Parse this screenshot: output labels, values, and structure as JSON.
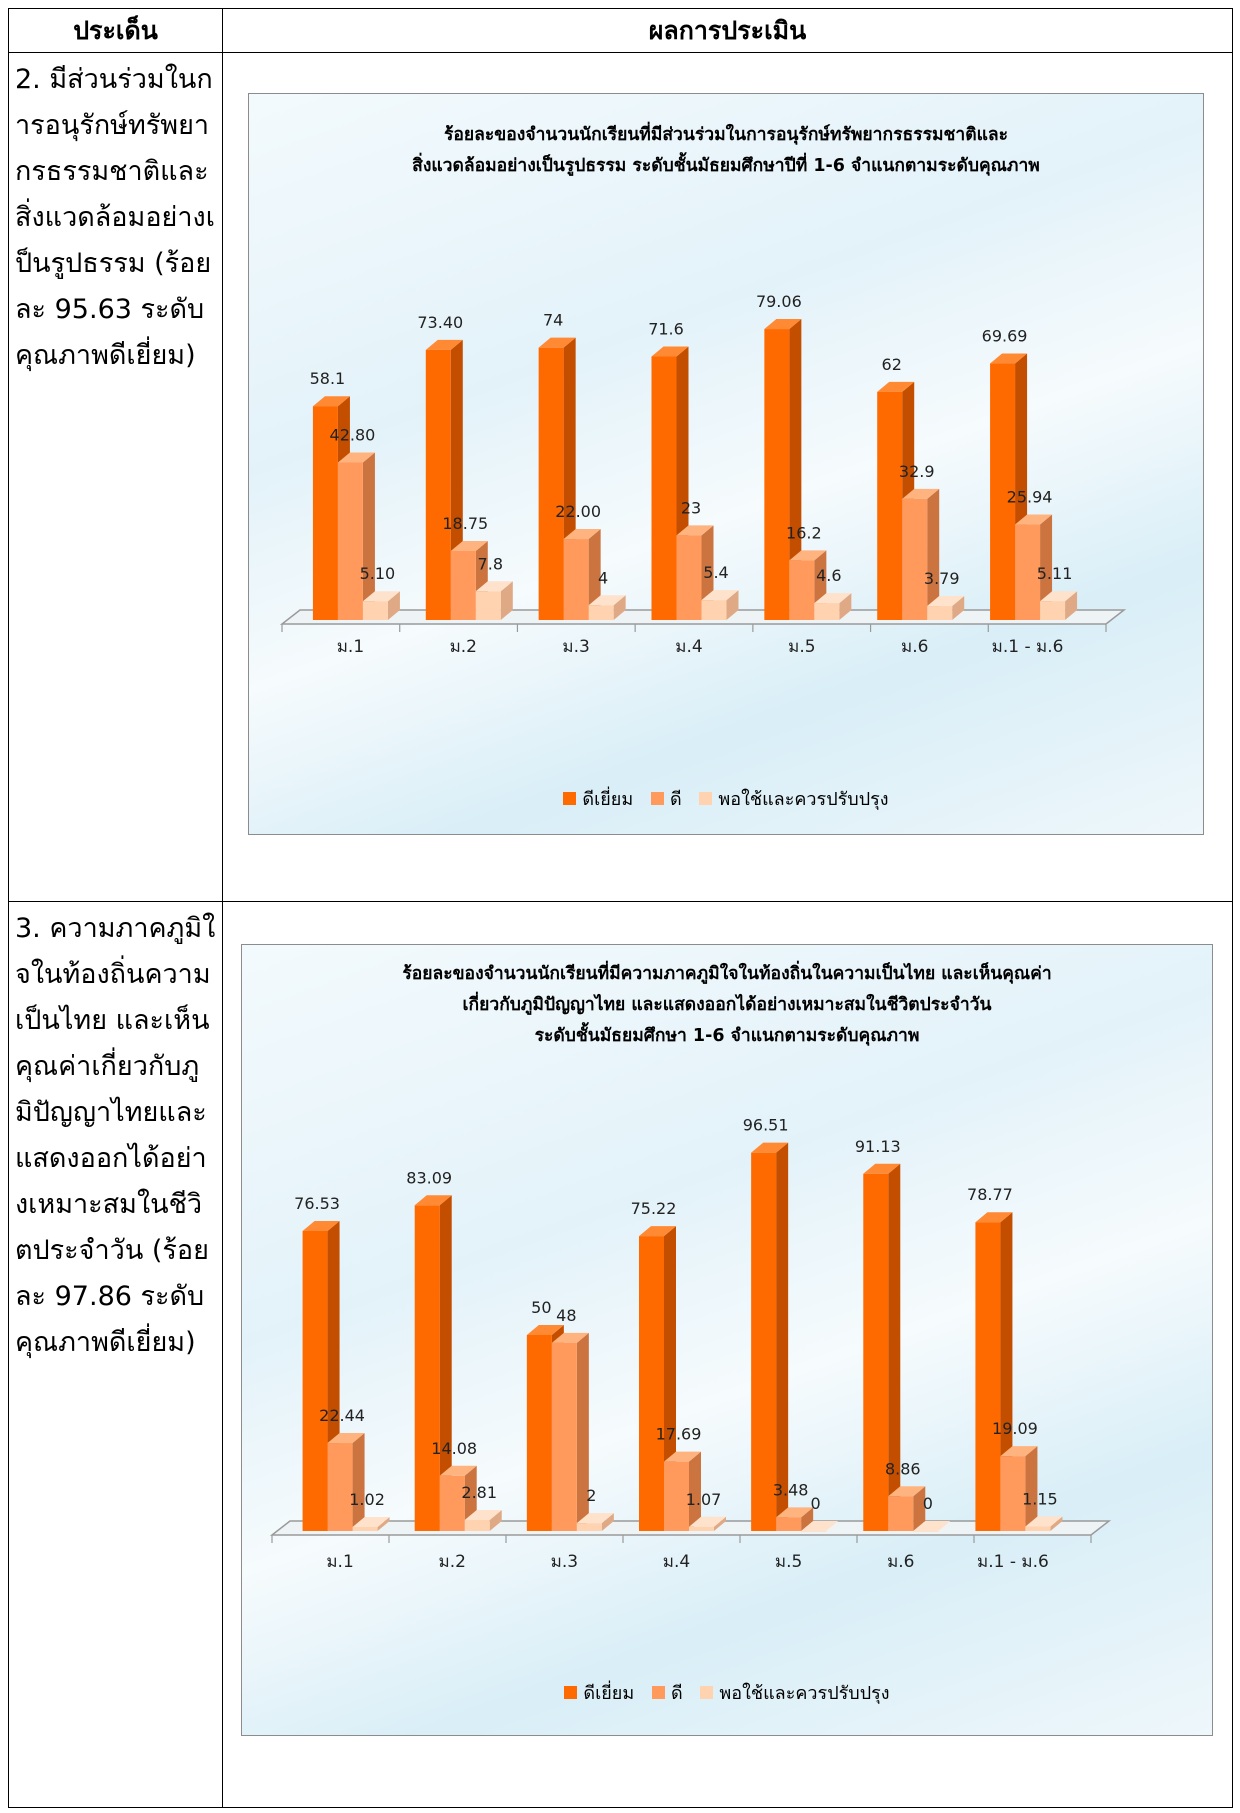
{
  "table": {
    "header_topic": "ประเด็น",
    "header_result": "ผลการประเมิน"
  },
  "rows": [
    {
      "topic": "2. มีส่วนร่วมในการอนุรักษ์ทรัพยากรธรรมชาติและสิ่งแวดล้อมอย่างเป็นรูปธรรม (ร้อยละ 95.63 ระดับคุณภาพดีเยี่ยม)",
      "topic_lines": [
        "2. มีส่วนร่วม",
        "ในการอนุรักษ์",
        "ทรัพยากร",
        "ธรรมชาติและ",
        "สิ่งแวดล้อม",
        "อย่างเป็นรูปธรรม",
        "(ร้อยละ 95.63",
        "ระดับคุณภาพ",
        "ดีเยี่ยม)"
      ]
    },
    {
      "topic": "3. ความภาคภูมิใจในท้องถิ่นความเป็นไทย และเห็นคุณค่าเกี่ยวกับภูมิปัญญาไทยและแสดงออกได้อย่างเหมาะสมในชีวิตประจำวัน (ร้อยละ 97.86 ระดับคุณภาพดีเยี่ยม)",
      "topic_lines": [
        "3. ความภาคภูมิใจ",
        "ในท้องถิ่นความ",
        "เป็นไทย และเห็น",
        "คุณค่าเกี่ยวกับ",
        "ภูมิปัญญาไทย",
        "และแสดงออก",
        "ได้อย่างเหมาะสม",
        "ในชีวิตประจำวัน",
        "(ร้อยละ 97.86",
        "ระดับคุณภาพ",
        "ดีเยี่ยม)"
      ]
    }
  ],
  "colors": {
    "excellent": "#ff6a00",
    "good": "#ff9a5c",
    "fair": "#ffd3b0"
  },
  "chart_data": [
    {
      "type": "bar",
      "title_lines": [
        "ร้อยละของจำนวนนักเรียนที่มีส่วนร่วมในการอนุรักษ์ทรัพยากรธรรมชาติและ",
        "สิ่งแวดล้อมอย่างเป็นรูปธรรม ระดับชั้นมัธยมศึกษาปีที่ 1-6 จำแนกตามระดับคุณภาพ"
      ],
      "categories": [
        "ม.1",
        "ม.2",
        "ม.3",
        "ม.4",
        "ม.5",
        "ม.6",
        "ม.1 - ม.6"
      ],
      "series": [
        {
          "name": "ดีเยี่ยม",
          "values": [
            58.1,
            73.4,
            74,
            71.6,
            79.06,
            62,
            69.69
          ],
          "labels": [
            "58.1",
            "73.40",
            "74",
            "71.6",
            "79.06",
            "62",
            "69.69"
          ]
        },
        {
          "name": "ดี",
          "values": [
            42.8,
            18.75,
            22.0,
            23,
            16.2,
            32.9,
            25.94
          ],
          "labels": [
            "42.80",
            "18.75",
            "22.00",
            "23",
            "16.2",
            "32.9",
            "25.94"
          ]
        },
        {
          "name": "พอใช้และควรปรับปรุง",
          "values": [
            5.1,
            7.8,
            4,
            5.4,
            4.6,
            3.79,
            5.11
          ],
          "labels": [
            "5.10",
            "7.8",
            "4",
            "5.4",
            "4.6",
            "3.79",
            "5.11"
          ]
        }
      ],
      "ylim": [
        0,
        100
      ],
      "grid": false,
      "legend_position": "bottom",
      "three_d": true
    },
    {
      "type": "bar",
      "title_lines": [
        "ร้อยละของจำนวนนักเรียนที่มีความภาคภูมิใจในท้องถิ่นในความเป็นไทย และเห็นคุณค่า",
        "เกี่ยวกับภูมิปัญญาไทย และแสดงออกได้อย่างเหมาะสมในชีวิตประจำวัน",
        "ระดับชั้นมัธยมศึกษา 1-6 จำแนกตามระดับคุณภาพ"
      ],
      "categories": [
        "ม.1",
        "ม.2",
        "ม.3",
        "ม.4",
        "ม.5",
        "ม.6",
        "ม.1 - ม.6"
      ],
      "series": [
        {
          "name": "ดีเยี่ยม",
          "values": [
            76.53,
            83.09,
            50,
            75.22,
            96.51,
            91.13,
            78.77
          ],
          "labels": [
            "76.53",
            "83.09",
            "50",
            "75.22",
            "96.51",
            "91.13",
            "78.77"
          ]
        },
        {
          "name": "ดี",
          "values": [
            22.44,
            14.08,
            48,
            17.69,
            3.48,
            8.86,
            19.09
          ],
          "labels": [
            "22.44",
            "14.08",
            "48",
            "17.69",
            "3.48",
            "8.86",
            "19.09"
          ]
        },
        {
          "name": "พอใช้และควรปรับปรุง",
          "values": [
            1.02,
            2.81,
            2,
            1.07,
            0,
            0,
            1.15
          ],
          "labels": [
            "1.02",
            "2.81",
            "2",
            "1.07",
            "0",
            "0",
            "1.15"
          ]
        }
      ],
      "ylim": [
        0,
        100
      ],
      "grid": false,
      "legend_position": "bottom",
      "three_d": true
    }
  ]
}
